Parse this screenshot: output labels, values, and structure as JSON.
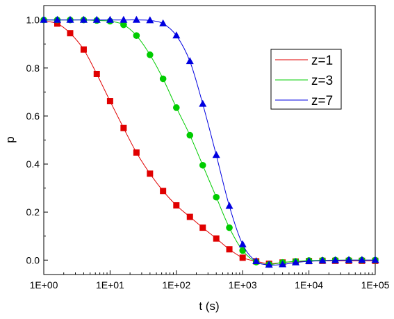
{
  "chart_data": {
    "type": "line",
    "title": "",
    "xlabel": "t (s)",
    "ylabel": "p",
    "xscale": "log",
    "xlim": [
      1,
      100000
    ],
    "ylim": [
      -0.06,
      1.06
    ],
    "grid": false,
    "legend_position": "top-right",
    "x_tick_labels": [
      "1E+00",
      "1E+01",
      "1E+02",
      "1E+03",
      "1E+04",
      "1E+05"
    ],
    "y_tick_labels": [
      "0.0",
      "0.2",
      "0.4",
      "0.6",
      "0.8",
      "1.0"
    ],
    "series": [
      {
        "name": "z=1",
        "color": "#e00000",
        "marker": "square",
        "x": [
          1.6,
          2.5,
          4,
          6.3,
          10,
          16,
          25,
          40,
          63,
          100,
          160,
          250,
          400,
          630,
          1000,
          1600,
          2500,
          4000,
          6300,
          10000,
          16000,
          25000,
          40000,
          63000,
          100000
        ],
        "y": [
          0.985,
          0.945,
          0.877,
          0.775,
          0.662,
          0.55,
          0.448,
          0.36,
          0.288,
          0.228,
          0.18,
          0.135,
          0.09,
          0.045,
          0.01,
          -0.005,
          -0.015,
          -0.01,
          -0.006,
          -0.004,
          -0.003,
          -0.003,
          -0.003,
          -0.003,
          -0.003
        ]
      },
      {
        "name": "z=3",
        "color": "#00cc00",
        "marker": "circle",
        "x": [
          1,
          1.6,
          2.5,
          4,
          6.3,
          10,
          16,
          25,
          40,
          63,
          100,
          160,
          250,
          400,
          630,
          1000,
          1600,
          2500,
          4000,
          6300,
          10000,
          16000,
          25000,
          40000,
          63000,
          100000
        ],
        "y": [
          1.0,
          1.0,
          1.0,
          1.0,
          0.998,
          0.995,
          0.98,
          0.935,
          0.855,
          0.755,
          0.635,
          0.52,
          0.395,
          0.262,
          0.135,
          0.04,
          -0.008,
          -0.018,
          -0.01,
          -0.005,
          -0.002,
          -0.001,
          0.0,
          0.0,
          0.0,
          0.0
        ]
      },
      {
        "name": "z=7",
        "color": "#0000e0",
        "marker": "triangle",
        "x": [
          1,
          1.6,
          2.5,
          4,
          6.3,
          10,
          16,
          25,
          40,
          63,
          100,
          160,
          250,
          400,
          630,
          1000,
          1600,
          2500,
          4000,
          6300,
          10000,
          16000,
          25000,
          40000,
          63000,
          100000
        ],
        "y": [
          1.0,
          1.0,
          1.0,
          1.0,
          1.0,
          1.0,
          1.0,
          1.0,
          0.998,
          0.985,
          0.935,
          0.828,
          0.65,
          0.437,
          0.225,
          0.065,
          -0.005,
          -0.02,
          -0.018,
          -0.01,
          -0.005,
          -0.002,
          -0.001,
          0.0,
          0.0,
          0.0
        ]
      }
    ]
  }
}
